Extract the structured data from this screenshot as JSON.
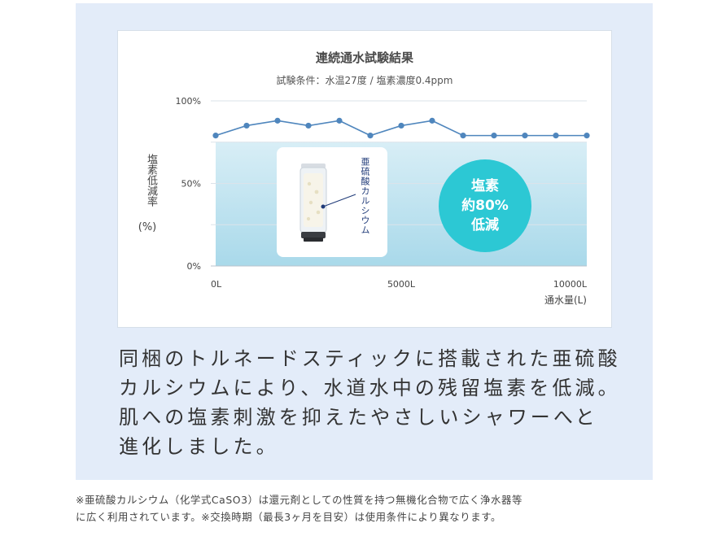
{
  "chart_data": {
    "type": "line",
    "title": "連続通水試験結果",
    "subtitle": "試験条件：水温27度 / 塩素濃度0.4ppm",
    "ylabel": "塩素低減率",
    "yunit": "(%)",
    "xlabel": "通水量(L)",
    "ylim": [
      0,
      100
    ],
    "xlim": [
      0,
      10000
    ],
    "yticks": [
      "0%",
      "50%",
      "100%"
    ],
    "xticks": [
      "0L",
      "5000L",
      "10000L"
    ],
    "grid": true,
    "x": [
      0,
      833,
      1667,
      2500,
      3333,
      4167,
      5000,
      5833,
      6667,
      7500,
      8333,
      9167,
      10000
    ],
    "series": [
      {
        "values": [
          79,
          85,
          88,
          85,
          88,
          79,
          85,
          88,
          79,
          79,
          79,
          79,
          79
        ]
      }
    ],
    "band_level": 75,
    "annotations": {
      "product_label": "亜硫酸カルシウム",
      "badge": [
        "塩素",
        "約80%",
        "低減"
      ]
    },
    "colors": {
      "line": "#4f86bd",
      "band_top": "#d8eef6",
      "band_bottom": "#a9d9ea",
      "badge": "#2cc8d4"
    }
  },
  "body": {
    "lines": [
      "同梱のトルネードスティックに搭載された亜硫酸",
      "カルシウムにより、水道水中の残留塩素を低減。",
      "肌への塩素刺激を抑えたやさしいシャワーへと",
      "進化しました。"
    ]
  },
  "footnote": {
    "lines": [
      "※亜硫酸カルシウム（化学式CaSO3）は還元剤としての性質を持つ無機化合物で広く浄水器等",
      "に広く利用されています。※交換時期（最長3ヶ月を目安）は使用条件により異なります。"
    ]
  }
}
